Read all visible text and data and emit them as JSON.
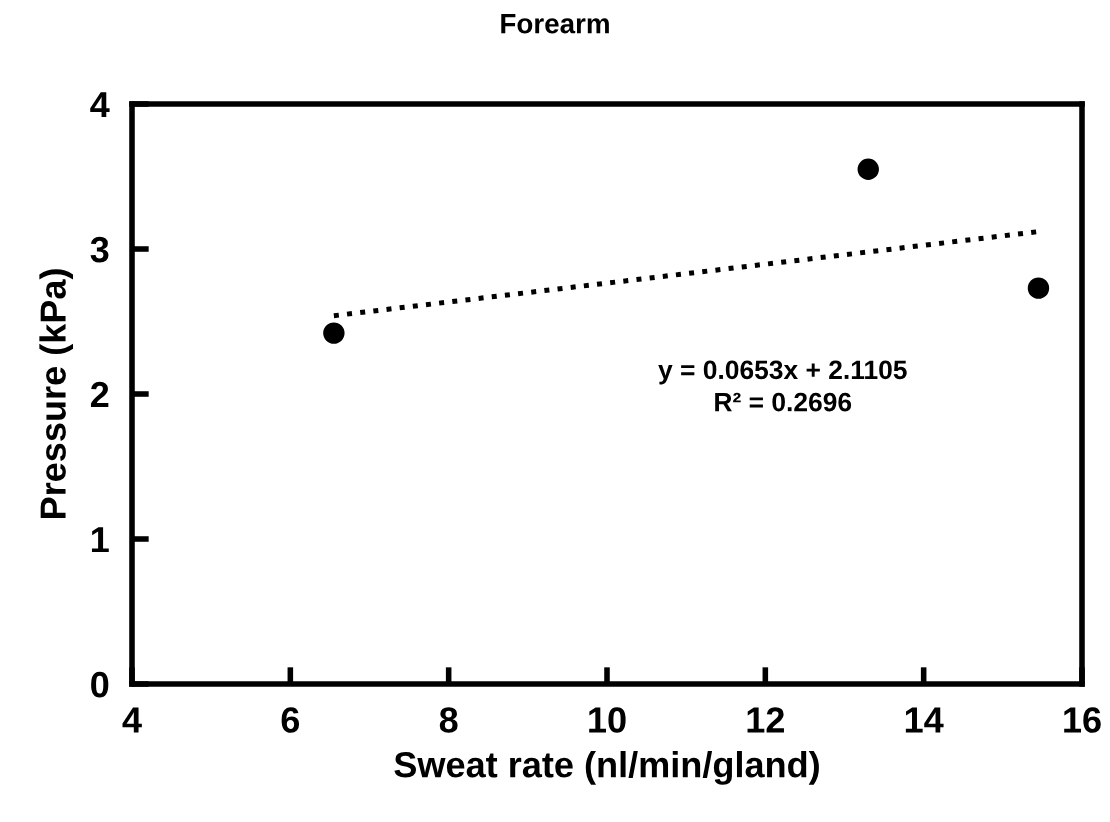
{
  "chart_data": {
    "type": "scatter",
    "title": "Forearm",
    "xlabel": "Sweat rate (nl/min/gland)",
    "ylabel": "Pressure (kPa)",
    "xlim": [
      4,
      16
    ],
    "ylim": [
      0,
      4
    ],
    "xticks": [
      4,
      6,
      8,
      10,
      12,
      14,
      16
    ],
    "yticks": [
      0,
      1,
      2,
      3,
      4
    ],
    "grid": false,
    "marker": "circle",
    "series": [
      {
        "color": "#000000",
        "x": [
          6.55,
          13.3,
          15.45
        ],
        "values": [
          2.42,
          3.55,
          2.73
        ]
      },
      {
        "type": "line",
        "color": "#000000",
        "line_style": "dotted",
        "marker": "none",
        "x": [
          6.55,
          15.45
        ],
        "values": [
          2.54,
          3.12
        ]
      }
    ],
    "annotations": [
      "y = 0.0653x + 2.1105\nR² = 0.2696"
    ]
  }
}
